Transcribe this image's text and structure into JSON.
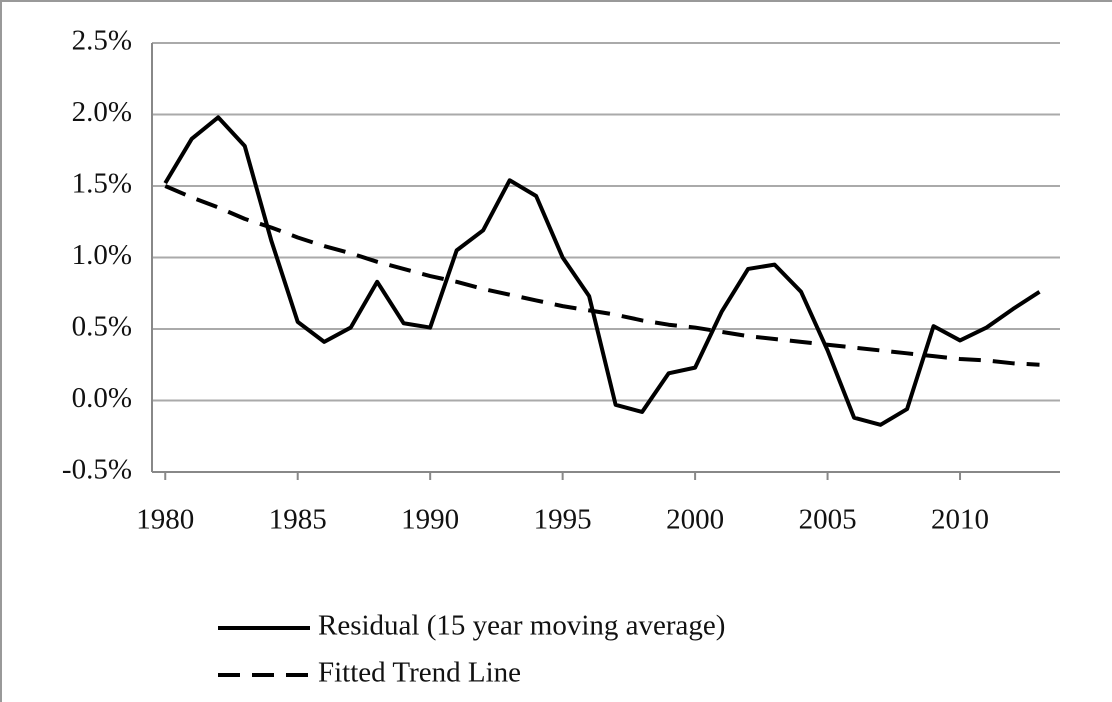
{
  "chart_data": {
    "type": "line",
    "x": [
      1980,
      1981,
      1982,
      1983,
      1984,
      1985,
      1986,
      1987,
      1988,
      1989,
      1990,
      1991,
      1992,
      1993,
      1994,
      1995,
      1996,
      1997,
      1998,
      1999,
      2000,
      2001,
      2002,
      2003,
      2004,
      2005,
      2006,
      2007,
      2008,
      2009,
      2010,
      2011,
      2012,
      2013
    ],
    "series": [
      {
        "name": "Residual (15 year moving average)",
        "color": "#000000",
        "line_style": "solid",
        "values": [
          1.52,
          1.83,
          1.98,
          1.78,
          1.12,
          0.55,
          0.41,
          0.51,
          0.83,
          0.54,
          0.51,
          1.05,
          1.19,
          1.54,
          1.43,
          1.0,
          0.73,
          -0.03,
          -0.08,
          0.19,
          0.23,
          0.62,
          0.92,
          0.95,
          0.76,
          0.35,
          -0.12,
          -0.17,
          -0.06,
          0.52,
          0.42,
          0.51,
          0.64,
          0.76
        ]
      },
      {
        "name": "Fitted Trend Line",
        "color": "#000000",
        "line_style": "dashed",
        "values": [
          1.5,
          1.42,
          1.35,
          1.27,
          1.21,
          1.14,
          1.08,
          1.03,
          0.97,
          0.92,
          0.87,
          0.83,
          0.78,
          0.74,
          0.7,
          0.66,
          0.63,
          0.6,
          0.56,
          0.53,
          0.51,
          0.48,
          0.45,
          0.43,
          0.41,
          0.39,
          0.37,
          0.35,
          0.33,
          0.31,
          0.29,
          0.28,
          0.26,
          0.25
        ]
      }
    ],
    "xlim": [
      1979.5,
      2014
    ],
    "xticks": [
      1980,
      1985,
      1990,
      1995,
      2000,
      2005,
      2010
    ],
    "ylim": [
      -0.5,
      2.5
    ],
    "yticks": [
      {
        "value": -0.5,
        "label": "-0.5%"
      },
      {
        "value": 0,
        "label": "0.0%"
      },
      {
        "value": 0.5,
        "label": "0.5%"
      },
      {
        "value": 1,
        "label": "1.0%"
      },
      {
        "value": 1.5,
        "label": "1.5%"
      },
      {
        "value": 2,
        "label": "2.0%"
      },
      {
        "value": 2.5,
        "label": "2.5%"
      }
    ],
    "grid": true,
    "legend": "bottom"
  }
}
